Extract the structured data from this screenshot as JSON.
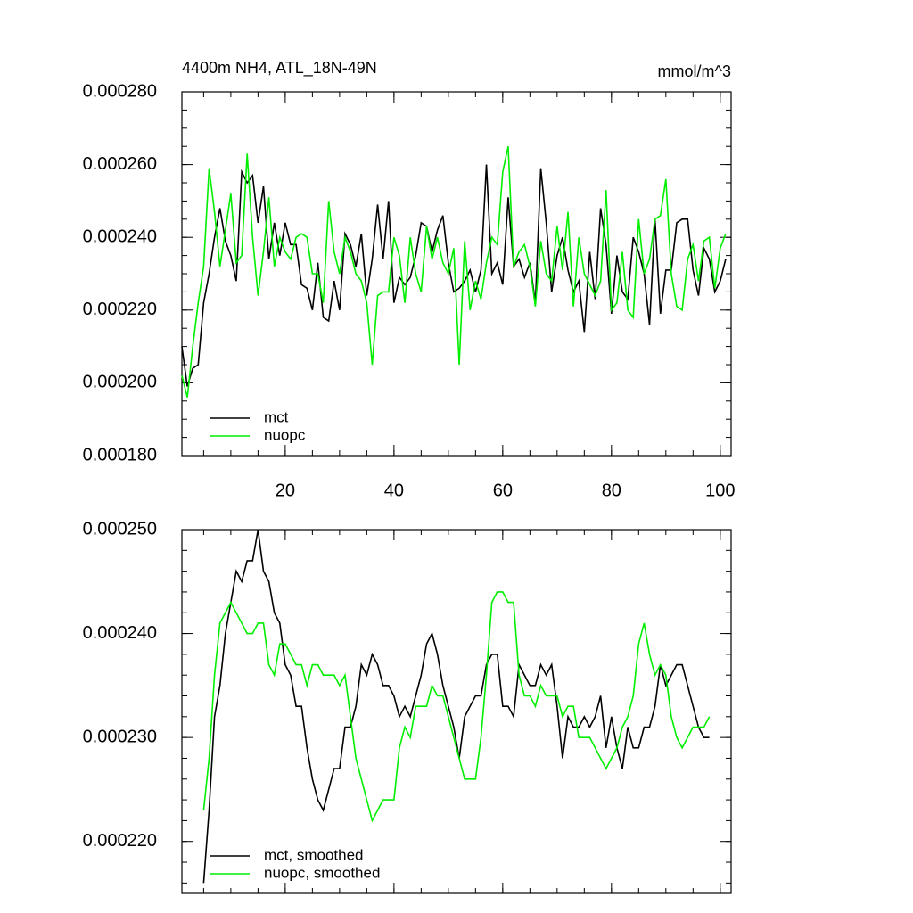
{
  "chart_data": [
    {
      "type": "line",
      "title": "4400m NH4, ATL_18N-49N",
      "units": "mmol/m^3",
      "x": [
        1,
        2,
        3,
        4,
        5,
        6,
        7,
        8,
        9,
        10,
        11,
        12,
        13,
        14,
        15,
        16,
        17,
        18,
        19,
        20,
        21,
        22,
        23,
        24,
        25,
        26,
        27,
        28,
        29,
        30,
        31,
        32,
        33,
        34,
        35,
        36,
        37,
        38,
        39,
        40,
        41,
        42,
        43,
        44,
        45,
        46,
        47,
        48,
        49,
        50,
        51,
        52,
        53,
        54,
        55,
        56,
        57,
        58,
        59,
        60,
        61,
        62,
        63,
        64,
        65,
        66,
        67,
        68,
        69,
        70,
        71,
        72,
        73,
        74,
        75,
        76,
        77,
        78,
        79,
        80,
        81,
        82,
        83,
        84,
        85,
        86,
        87,
        88,
        89,
        90,
        91,
        92,
        93,
        94,
        95,
        96,
        97,
        98,
        99,
        100,
        101
      ],
      "series": [
        {
          "name": "mct",
          "color": "#000000",
          "values": [
            0.00021,
            0.000199,
            0.000204,
            0.000205,
            0.000222,
            0.00023,
            0.00024,
            0.000248,
            0.000239,
            0.000235,
            0.000228,
            0.000258,
            0.000255,
            0.000257,
            0.000244,
            0.000254,
            0.000234,
            0.000244,
            0.000235,
            0.000244,
            0.000238,
            0.000238,
            0.000227,
            0.000226,
            0.00022,
            0.000233,
            0.000218,
            0.000217,
            0.000228,
            0.00022,
            0.000241,
            0.000238,
            0.000232,
            0.000241,
            0.000224,
            0.000234,
            0.000249,
            0.000234,
            0.00025,
            0.000222,
            0.000229,
            0.000227,
            0.000229,
            0.000235,
            0.000244,
            0.000243,
            0.000236,
            0.000242,
            0.000246,
            0.000233,
            0.000225,
            0.000226,
            0.000228,
            0.000231,
            0.000225,
            0.000231,
            0.00026,
            0.00023,
            0.000233,
            0.000227,
            0.000251,
            0.000232,
            0.000234,
            0.000229,
            0.000233,
            0.000222,
            0.000259,
            0.000244,
            0.000225,
            0.000235,
            0.00024,
            0.000231,
            0.000225,
            0.000228,
            0.000214,
            0.000236,
            0.000223,
            0.000248,
            0.000238,
            0.000219,
            0.000235,
            0.000225,
            0.000223,
            0.00024,
            0.000236,
            0.00023,
            0.000216,
            0.000245,
            0.000219,
            0.000231,
            0.000231,
            0.000244,
            0.000245,
            0.000245,
            0.000231,
            0.000224,
            0.000237,
            0.000234,
            0.000225,
            0.000228,
            0.000234
          ]
        },
        {
          "name": "nuopc",
          "color": "#00ee00",
          "values": [
            0.000202,
            0.000196,
            0.00021,
            0.000222,
            0.000232,
            0.000259,
            0.000247,
            0.000232,
            0.000242,
            0.000252,
            0.000233,
            0.000235,
            0.000263,
            0.00024,
            0.000224,
            0.000236,
            0.000251,
            0.000232,
            0.00024,
            0.000236,
            0.000234,
            0.00024,
            0.000241,
            0.00024,
            0.00023,
            0.00023,
            0.000222,
            0.00025,
            0.000236,
            0.00023,
            0.00024,
            0.000236,
            0.00023,
            0.000228,
            0.000222,
            0.000205,
            0.000224,
            0.000225,
            0.000225,
            0.00024,
            0.000235,
            0.000222,
            0.00024,
            0.00023,
            0.000225,
            0.000243,
            0.000234,
            0.00024,
            0.000233,
            0.00023,
            0.000237,
            0.000205,
            0.000239,
            0.00022,
            0.000228,
            0.000223,
            0.000233,
            0.00024,
            0.000238,
            0.000258,
            0.000265,
            0.000232,
            0.000236,
            0.000238,
            0.000232,
            0.000221,
            0.000239,
            0.00023,
            0.000228,
            0.000243,
            0.000231,
            0.000247,
            0.000221,
            0.00024,
            0.00023,
            0.000227,
            0.000224,
            0.000228,
            0.000253,
            0.00022,
            0.000222,
            0.000236,
            0.00022,
            0.000218,
            0.000245,
            0.00023,
            0.000234,
            0.000245,
            0.000246,
            0.000256,
            0.00023,
            0.000221,
            0.00022,
            0.000234,
            0.000238,
            0.000228,
            0.000239,
            0.00024,
            0.000226,
            0.000237,
            0.000241
          ]
        }
      ],
      "xlim": [
        1,
        102
      ],
      "xticks": [
        20,
        40,
        60,
        80,
        100
      ],
      "xtick_labels": true,
      "ylim": [
        0.00018,
        0.00028
      ],
      "yticks": [
        {
          "value": 0.00018,
          "label": "0.000180"
        },
        {
          "value": 0.0002,
          "label": "0.000200"
        },
        {
          "value": 0.00022,
          "label": "0.000220"
        },
        {
          "value": 0.00024,
          "label": "0.000240"
        },
        {
          "value": 0.00026,
          "label": "0.000260"
        },
        {
          "value": 0.00028,
          "label": "0.000280"
        }
      ],
      "y_minor_divisions": 4,
      "legend": "lower left"
    },
    {
      "type": "line",
      "x": [
        5,
        6,
        7,
        8,
        9,
        10,
        11,
        12,
        13,
        14,
        15,
        16,
        17,
        18,
        19,
        20,
        21,
        22,
        23,
        24,
        25,
        26,
        27,
        28,
        29,
        30,
        31,
        32,
        33,
        34,
        35,
        36,
        37,
        38,
        39,
        40,
        41,
        42,
        43,
        44,
        45,
        46,
        47,
        48,
        49,
        50,
        51,
        52,
        53,
        54,
        55,
        56,
        57,
        58,
        59,
        60,
        61,
        62,
        63,
        64,
        65,
        66,
        67,
        68,
        69,
        70,
        71,
        72,
        73,
        74,
        75,
        76,
        77,
        78,
        79,
        80,
        81,
        82,
        83,
        84,
        85,
        86,
        87,
        88,
        89,
        90,
        91,
        92,
        93,
        94,
        95,
        96,
        97,
        98
      ],
      "series": [
        {
          "name": "mct, smoothed",
          "color": "#000000",
          "values": [
            0.000216,
            0.000223,
            0.000232,
            0.000235,
            0.00024,
            0.000243,
            0.000246,
            0.000245,
            0.000247,
            0.000247,
            0.00025,
            0.000246,
            0.000245,
            0.000242,
            0.000241,
            0.000237,
            0.000236,
            0.000233,
            0.000233,
            0.000229,
            0.000226,
            0.000224,
            0.000223,
            0.000225,
            0.000227,
            0.000227,
            0.000231,
            0.000231,
            0.000233,
            0.000237,
            0.000236,
            0.000238,
            0.000237,
            0.000235,
            0.000235,
            0.000234,
            0.000232,
            0.000233,
            0.000232,
            0.000234,
            0.000236,
            0.000239,
            0.00024,
            0.000238,
            0.000235,
            0.000233,
            0.000231,
            0.000228,
            0.000232,
            0.000233,
            0.000234,
            0.000234,
            0.000237,
            0.000238,
            0.000238,
            0.000233,
            0.000233,
            0.000232,
            0.000237,
            0.000236,
            0.000235,
            0.000235,
            0.000237,
            0.000236,
            0.000237,
            0.000233,
            0.000228,
            0.000232,
            0.000231,
            0.000231,
            0.000232,
            0.000231,
            0.000232,
            0.000234,
            0.000229,
            0.000232,
            0.000229,
            0.000227,
            0.000231,
            0.000229,
            0.000229,
            0.000231,
            0.000231,
            0.000233,
            0.000237,
            0.000235,
            0.000236,
            0.000237,
            0.000237,
            0.000235,
            0.000233,
            0.000231,
            0.00023,
            0.00023
          ]
        },
        {
          "name": "nuopc, smoothed",
          "color": "#00ee00",
          "values": [
            0.000223,
            0.000228,
            0.000236,
            0.000241,
            0.000242,
            0.000243,
            0.000242,
            0.000241,
            0.00024,
            0.00024,
            0.000241,
            0.000241,
            0.000237,
            0.000236,
            0.000239,
            0.000239,
            0.000238,
            0.000237,
            0.000237,
            0.000235,
            0.000237,
            0.000237,
            0.000236,
            0.000236,
            0.000236,
            0.000235,
            0.000236,
            0.000232,
            0.000228,
            0.000226,
            0.000224,
            0.000222,
            0.000223,
            0.000224,
            0.000224,
            0.000224,
            0.000229,
            0.000231,
            0.00023,
            0.000233,
            0.000233,
            0.000233,
            0.000235,
            0.000234,
            0.000234,
            0.000232,
            0.00023,
            0.000228,
            0.000226,
            0.000226,
            0.000226,
            0.00023,
            0.000236,
            0.000243,
            0.000244,
            0.000244,
            0.000243,
            0.000243,
            0.000236,
            0.000234,
            0.000234,
            0.000233,
            0.000235,
            0.000234,
            0.000234,
            0.000234,
            0.000232,
            0.000233,
            0.000233,
            0.00023,
            0.00023,
            0.00023,
            0.000229,
            0.000228,
            0.000227,
            0.000228,
            0.000229,
            0.000231,
            0.000232,
            0.000234,
            0.000239,
            0.000241,
            0.000238,
            0.000236,
            0.000237,
            0.000236,
            0.000232,
            0.00023,
            0.000229,
            0.00023,
            0.000231,
            0.000231,
            0.000231,
            0.000232
          ]
        }
      ],
      "xlim": [
        1,
        102
      ],
      "xticks": [
        20,
        40,
        60,
        80,
        100
      ],
      "xtick_labels": false,
      "ylim": [
        0.000215,
        0.00025
      ],
      "yticks": [
        {
          "value": 0.00022,
          "label": "0.000220"
        },
        {
          "value": 0.00023,
          "label": "0.000230"
        },
        {
          "value": 0.00024,
          "label": "0.000240"
        },
        {
          "value": 0.00025,
          "label": "0.000250"
        }
      ],
      "y_minor_divisions": 5,
      "legend": "lower left"
    }
  ]
}
